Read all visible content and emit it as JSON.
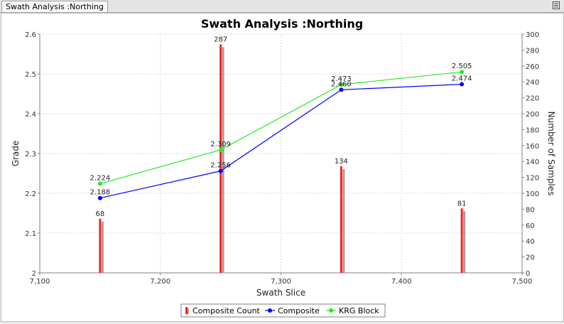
{
  "tab": {
    "label": "Swath Analysis :Northing"
  },
  "colors": {
    "count_bar": "#ff2020",
    "count_bar_shadow": "#a0a0a0",
    "composite": "#0000ff",
    "krg_block": "#22ee22",
    "grid": "#d8d8d8"
  },
  "chart_data": {
    "type": "line",
    "title": "Swath Analysis :Northing",
    "xlabel": "Swath Slice",
    "ylabel": "Grade",
    "y2label": "Number of Samples",
    "xlim": [
      7100,
      7500
    ],
    "ylim": [
      2.0,
      2.6
    ],
    "y2lim": [
      0,
      300
    ],
    "grid": true,
    "legend_position": "bottom-center",
    "x_ticks": [
      "7,100",
      "7,200",
      "7,300",
      "7,400",
      "7,500"
    ],
    "y_ticks": [
      "2",
      "2.1",
      "2.2",
      "2.3",
      "2.4",
      "2.5",
      "2.6"
    ],
    "y2_ticks": [
      "0",
      "20",
      "40",
      "60",
      "80",
      "100",
      "120",
      "140",
      "160",
      "180",
      "200",
      "220",
      "240",
      "260",
      "280",
      "300"
    ],
    "x": [
      7150,
      7250,
      7350,
      7450
    ],
    "series": [
      {
        "name": "Composite Count",
        "type": "bar",
        "axis": "right",
        "values": [
          68,
          287,
          134,
          81
        ],
        "labels": [
          "68",
          "287",
          "134",
          "81"
        ]
      },
      {
        "name": "Composite",
        "type": "line",
        "axis": "left",
        "values": [
          2.188,
          2.256,
          2.46,
          2.474
        ],
        "labels": [
          "2.188",
          "2.256",
          "2.460",
          "2.474"
        ]
      },
      {
        "name": "KRG Block",
        "type": "line",
        "axis": "left",
        "values": [
          2.224,
          2.309,
          2.473,
          2.505
        ],
        "labels": [
          "2.224",
          "2.309",
          "2.473",
          "2.505"
        ]
      }
    ]
  }
}
